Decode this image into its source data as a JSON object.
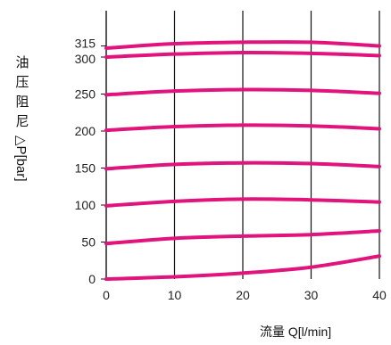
{
  "chart_data": {
    "type": "line",
    "xlabel": "流量 Q[l/min]",
    "ylabel": "油压阻尼△P[bar]",
    "x_ticks": [
      0,
      10,
      20,
      30,
      40
    ],
    "y_ticks": [
      0,
      50,
      100,
      150,
      200,
      250,
      300,
      315
    ],
    "xlim": [
      0,
      40
    ],
    "ylim": [
      0,
      315
    ],
    "grid": "vertical",
    "line_color": "#e0147c",
    "series": [
      {
        "x": [
          0,
          10,
          20,
          30,
          40
        ],
        "values": [
          0,
          3,
          8,
          16,
          31
        ]
      },
      {
        "x": [
          0,
          10,
          20,
          30,
          40
        ],
        "values": [
          48,
          55,
          58,
          60,
          65
        ]
      },
      {
        "x": [
          0,
          10,
          20,
          30,
          40
        ],
        "values": [
          99,
          105,
          108,
          107,
          104
        ]
      },
      {
        "x": [
          0,
          10,
          20,
          30,
          40
        ],
        "values": [
          149,
          155,
          157,
          156,
          152
        ]
      },
      {
        "x": [
          0,
          10,
          20,
          30,
          40
        ],
        "values": [
          201,
          206,
          208,
          207,
          203
        ]
      },
      {
        "x": [
          0,
          10,
          20,
          30,
          40
        ],
        "values": [
          249,
          254,
          256,
          255,
          251
        ]
      },
      {
        "x": [
          0,
          10,
          20,
          30,
          40
        ],
        "values": [
          300,
          304,
          306,
          305,
          302
        ]
      },
      {
        "x": [
          0,
          10,
          20,
          30,
          40
        ],
        "values": [
          312,
          318,
          320,
          320,
          315
        ]
      }
    ]
  }
}
